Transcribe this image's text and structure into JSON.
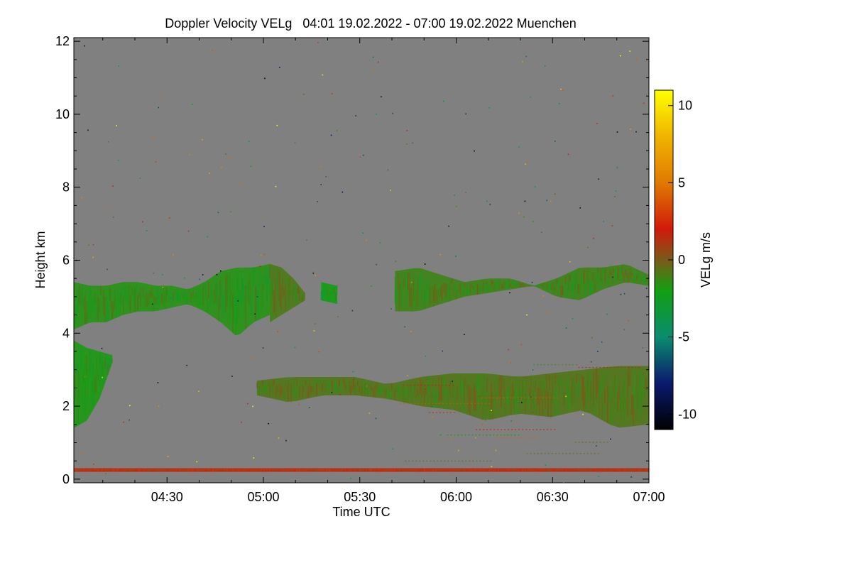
{
  "chart_data": {
    "type": "heatmap",
    "title": "Doppler Velocity VELg   04:01 19.02.2022 - 07:00 19.02.2022 Muenchen",
    "xlabel": "Time UTC",
    "ylabel": "Height km",
    "colorbar_label": "VELg m/s",
    "x_range_minutes_utc": [
      241,
      420
    ],
    "x_ticks": [
      {
        "value": 270,
        "label": "04:30"
      },
      {
        "value": 300,
        "label": "05:00"
      },
      {
        "value": 330,
        "label": "05:30"
      },
      {
        "value": 360,
        "label": "06:00"
      },
      {
        "value": 390,
        "label": "06:30"
      },
      {
        "value": 420,
        "label": "07:00"
      }
    ],
    "y_range_km": [
      -0.1,
      12.1
    ],
    "y_ticks": [
      0,
      2,
      4,
      6,
      8,
      10,
      12
    ],
    "colorbar_range": [
      -11,
      11
    ],
    "colorbar_ticks": [
      -10,
      -5,
      0,
      5,
      10
    ],
    "colormap_stops": [
      {
        "value": -11,
        "color": "#000000"
      },
      {
        "value": -8,
        "color": "#0a1a6e"
      },
      {
        "value": -5,
        "color": "#0a8c6e"
      },
      {
        "value": -2,
        "color": "#11a011"
      },
      {
        "value": 0,
        "color": "#7a5a1a"
      },
      {
        "value": 2,
        "color": "#d11a0a"
      },
      {
        "value": 5,
        "color": "#e07a00"
      },
      {
        "value": 8,
        "color": "#f0b400"
      },
      {
        "value": 11,
        "color": "#ffff00"
      }
    ],
    "background_color": "#808080",
    "echo_layers": [
      {
        "name": "upper-cloud-layer",
        "segments": [
          {
            "start": 241,
            "end": 302,
            "top": [
              5.4,
              5.3,
              5.3,
              5.4,
              5.4,
              5.3,
              5.3,
              5.2,
              5.4,
              5.7,
              5.8,
              5.8,
              5.9
            ],
            "base": [
              4.1,
              4.3,
              4.3,
              4.5,
              4.6,
              4.6,
              4.7,
              4.8,
              4.6,
              4.3,
              3.9,
              4.3,
              4.5
            ],
            "mean_velocity": -1.6
          },
          {
            "start": 302,
            "end": 313,
            "top": [
              5.9,
              5.8,
              5.5,
              5.1
            ],
            "base": [
              4.3,
              4.5,
              4.7,
              4.9
            ],
            "mean_velocity": -0.9
          },
          {
            "start": 318,
            "end": 323,
            "top": [
              5.4,
              5.3
            ],
            "base": [
              4.9,
              4.8
            ],
            "mean_velocity": -2.1
          },
          {
            "start": 341,
            "end": 420,
            "top": [
              5.7,
              5.8,
              5.6,
              5.4,
              5.5,
              5.5,
              5.3,
              5.5,
              5.8,
              5.8,
              5.9,
              5.6
            ],
            "base": [
              4.6,
              4.6,
              4.8,
              5.0,
              5.1,
              5.2,
              5.3,
              5.0,
              4.9,
              5.2,
              5.4,
              5.3
            ],
            "mean_velocity": -1.2
          }
        ]
      },
      {
        "name": "lower-cloud-layer",
        "segments": [
          {
            "start": 241,
            "end": 253,
            "top": [
              3.8,
              3.6,
              3.5,
              3.4
            ],
            "base": [
              1.4,
              1.6,
              2.2,
              3.2
            ],
            "mean_velocity": -1.8
          },
          {
            "start": 298,
            "end": 420,
            "top": [
              2.7,
              2.8,
              2.8,
              2.8,
              2.6,
              2.8,
              2.9,
              2.9,
              2.8,
              2.9,
              3.0,
              3.1,
              3.1
            ],
            "base": [
              2.3,
              2.1,
              2.3,
              2.3,
              2.2,
              2.0,
              1.9,
              1.6,
              1.8,
              1.7,
              1.9,
              1.4,
              1.5
            ],
            "mean_velocity": -0.8
          }
        ]
      },
      {
        "name": "ground-clutter-line",
        "segments": [
          {
            "start": 241,
            "end": 420,
            "top": [
              0.3,
              0.3
            ],
            "base": [
              0.2,
              0.2
            ],
            "mean_velocity": 1.5
          }
        ]
      }
    ]
  }
}
